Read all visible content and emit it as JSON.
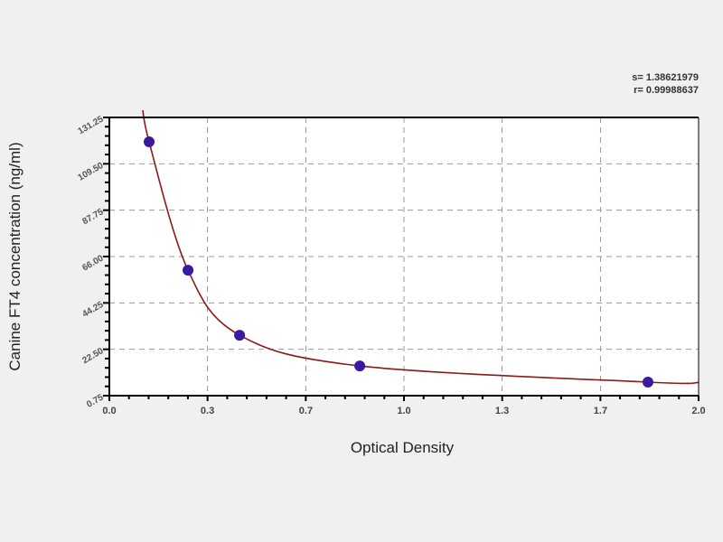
{
  "chart_data": {
    "type": "scatter",
    "xlabel": "Optical Density",
    "ylabel": "Canine  FT4 concentration (ng/ml)",
    "xlim": [
      0.0,
      2.0
    ],
    "ylim": [
      0.75,
      131.25
    ],
    "x_ticks": [
      0.0,
      0.333,
      0.667,
      1.0,
      1.333,
      1.667,
      2.0
    ],
    "x_tick_labels": [
      "0.0",
      "0.3",
      "0.7",
      "1.0",
      "1.3",
      "1.7",
      "2.0"
    ],
    "y_ticks": [
      0.75,
      22.5,
      44.25,
      66.0,
      87.75,
      109.5,
      131.25
    ],
    "y_tick_labels": [
      "0.75",
      "22.50",
      "44.25",
      "66.00",
      "87.75",
      "109.50",
      "131.25"
    ],
    "grid": true,
    "annotations": [
      "s= 1.38621979",
      "r= 0.99988637"
    ],
    "points": {
      "x": [
        0.135,
        0.267,
        0.442,
        0.85,
        1.828
      ],
      "y": [
        119.8,
        59.6,
        29.1,
        14.7,
        7.1
      ]
    },
    "point_color": "#3a1aa0",
    "curve_color": "#8b1a1a"
  }
}
